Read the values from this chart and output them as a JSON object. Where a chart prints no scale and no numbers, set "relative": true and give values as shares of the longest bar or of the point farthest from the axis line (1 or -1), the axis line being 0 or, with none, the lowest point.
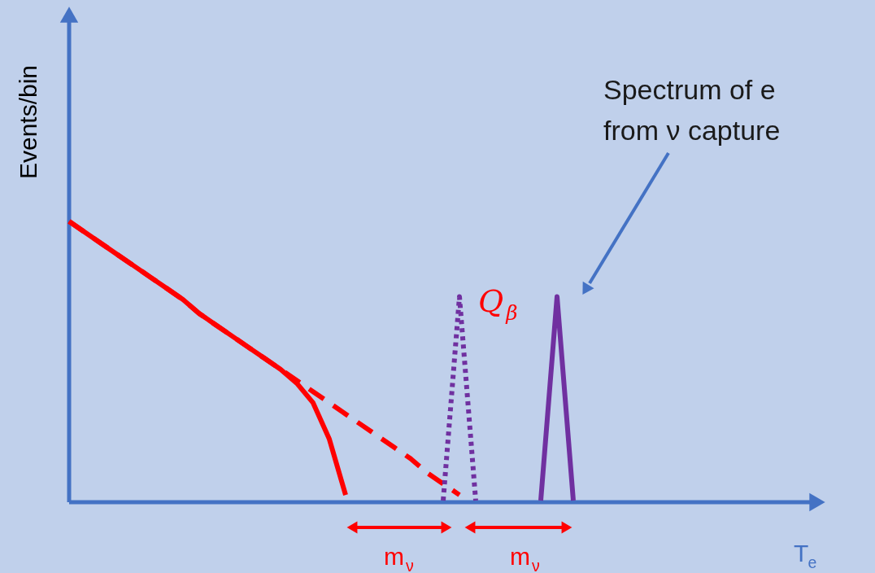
{
  "chart_data": {
    "type": "line",
    "relative": true,
    "xlabel": "T$_{e}$",
    "ylabel": "Events/bin",
    "categories": [
      null,
      null,
      null,
      null,
      null,
      null,
      null,
      null,
      null,
      null,
      null,
      null,
      null,
      null,
      null,
      null,
      null,
      null,
      null,
      null,
      null,
      null,
      null,
      null,
      null,
      null,
      null,
      null,
      null,
      null,
      null,
      null,
      null,
      null,
      null,
      null,
      null,
      null,
      null,
      null,
      null,
      null,
      null,
      null,
      null,
      null,
      null
    ],
    "series": [
      {
        "color": "#ff0000",
        "line_style": "solid",
        "values": [
          1,
          0.96,
          0.92,
          0.88,
          0.84,
          0.8,
          0.76,
          0.72,
          0.67,
          0.63,
          0.59,
          0.55,
          0.51,
          0.47,
          0.42,
          0.35,
          0.22,
          0.02,
          null,
          null,
          null,
          null,
          null,
          null,
          null,
          null,
          null,
          null,
          null,
          null,
          null,
          null,
          null,
          null,
          null,
          null,
          null,
          null,
          null,
          null,
          null,
          null,
          null,
          null,
          null,
          null,
          null
        ]
      },
      {
        "color": "#ff0000",
        "line_style": "dashed",
        "values": [
          1,
          0.96,
          0.92,
          0.88,
          0.84,
          0.8,
          0.76,
          0.72,
          0.67,
          0.63,
          0.59,
          0.55,
          0.51,
          0.47,
          0.43,
          0.39,
          0.35,
          0.31,
          0.27,
          0.23,
          0.19,
          0.15,
          0.1,
          0.06,
          0.02,
          null,
          null,
          null,
          null,
          null,
          null,
          null,
          null,
          null,
          null,
          null,
          null,
          null,
          null,
          null,
          null,
          null,
          null,
          null,
          null,
          null,
          null
        ]
      },
      {
        "color": "#7030a0",
        "line_style": "dotted",
        "values": [
          null,
          null,
          null,
          null,
          null,
          null,
          null,
          null,
          null,
          null,
          null,
          null,
          null,
          null,
          null,
          null,
          null,
          null,
          null,
          null,
          null,
          null,
          null,
          0,
          0.73,
          0,
          null,
          null,
          null,
          null,
          null,
          null,
          null,
          null,
          null,
          null,
          null,
          null,
          null,
          null,
          null,
          null,
          null,
          null,
          null,
          null,
          null
        ]
      },
      {
        "color": "#7030a0",
        "line_style": "solid",
        "values": [
          null,
          null,
          null,
          null,
          null,
          null,
          null,
          null,
          null,
          null,
          null,
          null,
          null,
          null,
          null,
          null,
          null,
          null,
          null,
          null,
          null,
          null,
          null,
          null,
          null,
          null,
          null,
          null,
          null,
          0,
          0.73,
          0,
          null,
          null,
          null,
          null,
          null,
          null,
          null,
          null,
          null,
          null,
          null,
          null,
          null,
          null,
          null
        ]
      }
    ],
    "annotations": [
      "Q$_{β}$",
      "m$_{ν}$",
      "m$_{ν}$",
      "Spectrum of e\nfrom ν capture"
    ]
  }
}
